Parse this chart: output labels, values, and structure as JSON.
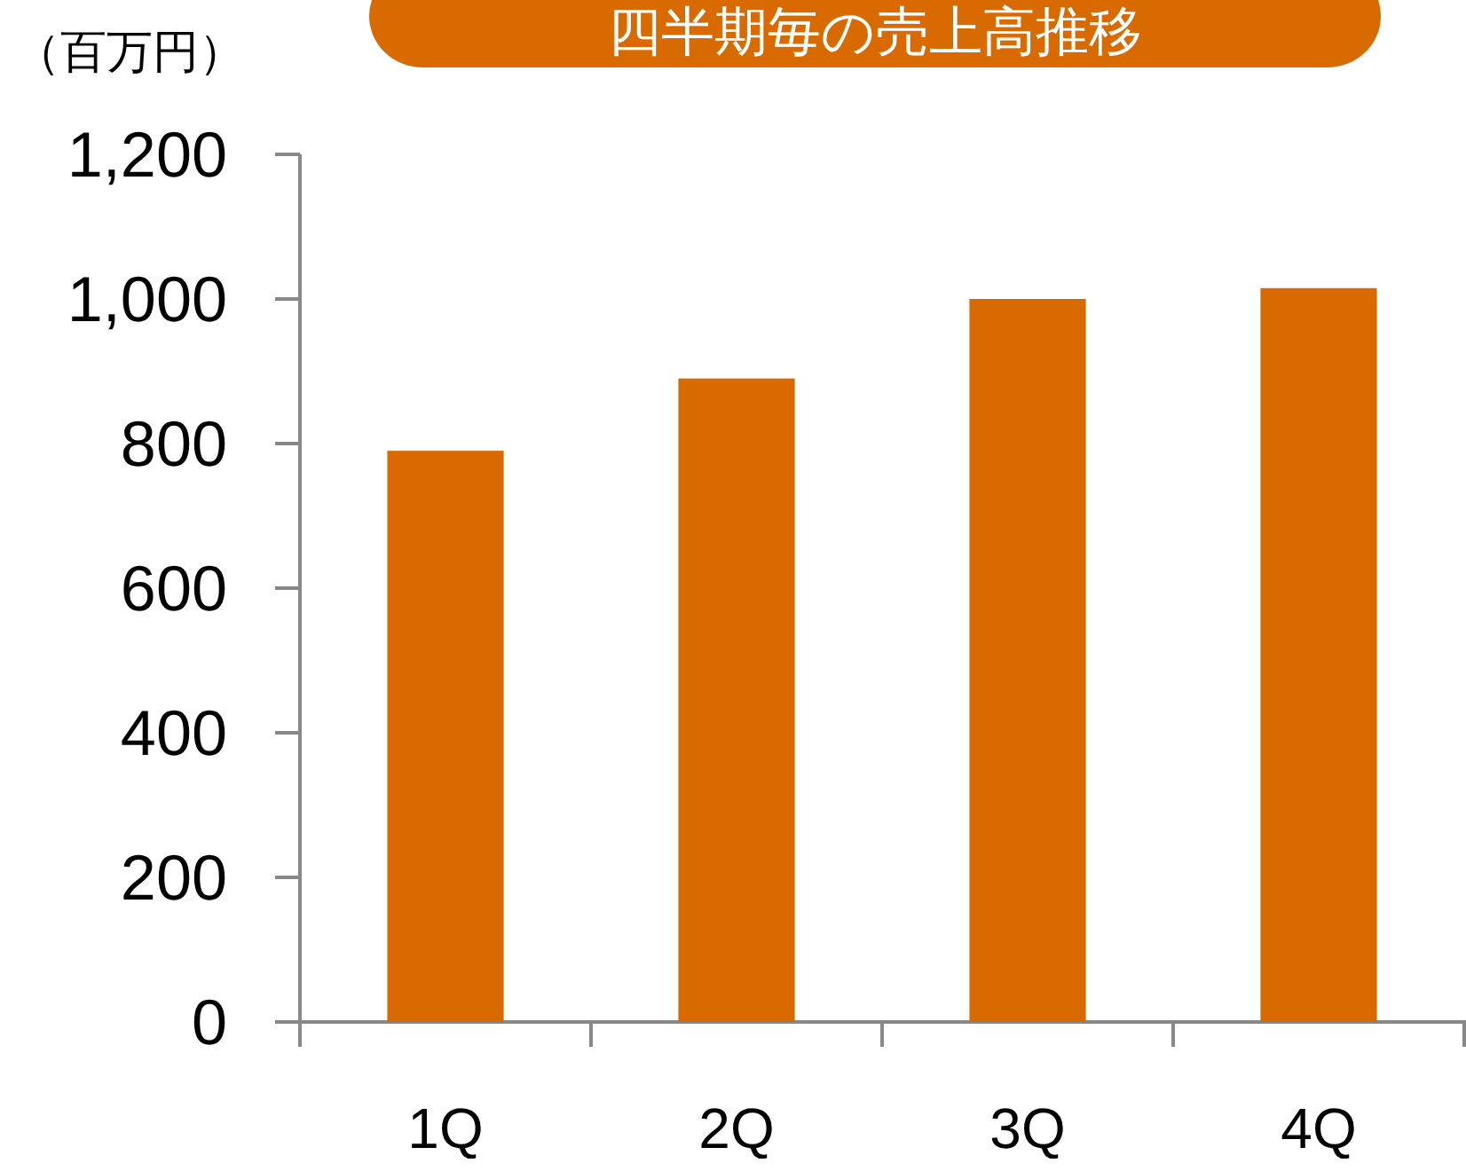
{
  "chart_data": {
    "type": "bar",
    "title": "四半期毎の売上高推移",
    "ylabel": "（百万円）",
    "categories": [
      "1Q",
      "2Q",
      "3Q",
      "4Q"
    ],
    "values": [
      790,
      890,
      1000,
      1015
    ],
    "color": "#d96a00",
    "ylim": [
      0,
      1200
    ],
    "yticks": [
      0,
      200,
      400,
      600,
      800,
      {
        "value": 1000,
        "label": "1,000"
      },
      {
        "value": 1200,
        "label": "1,200"
      }
    ]
  }
}
